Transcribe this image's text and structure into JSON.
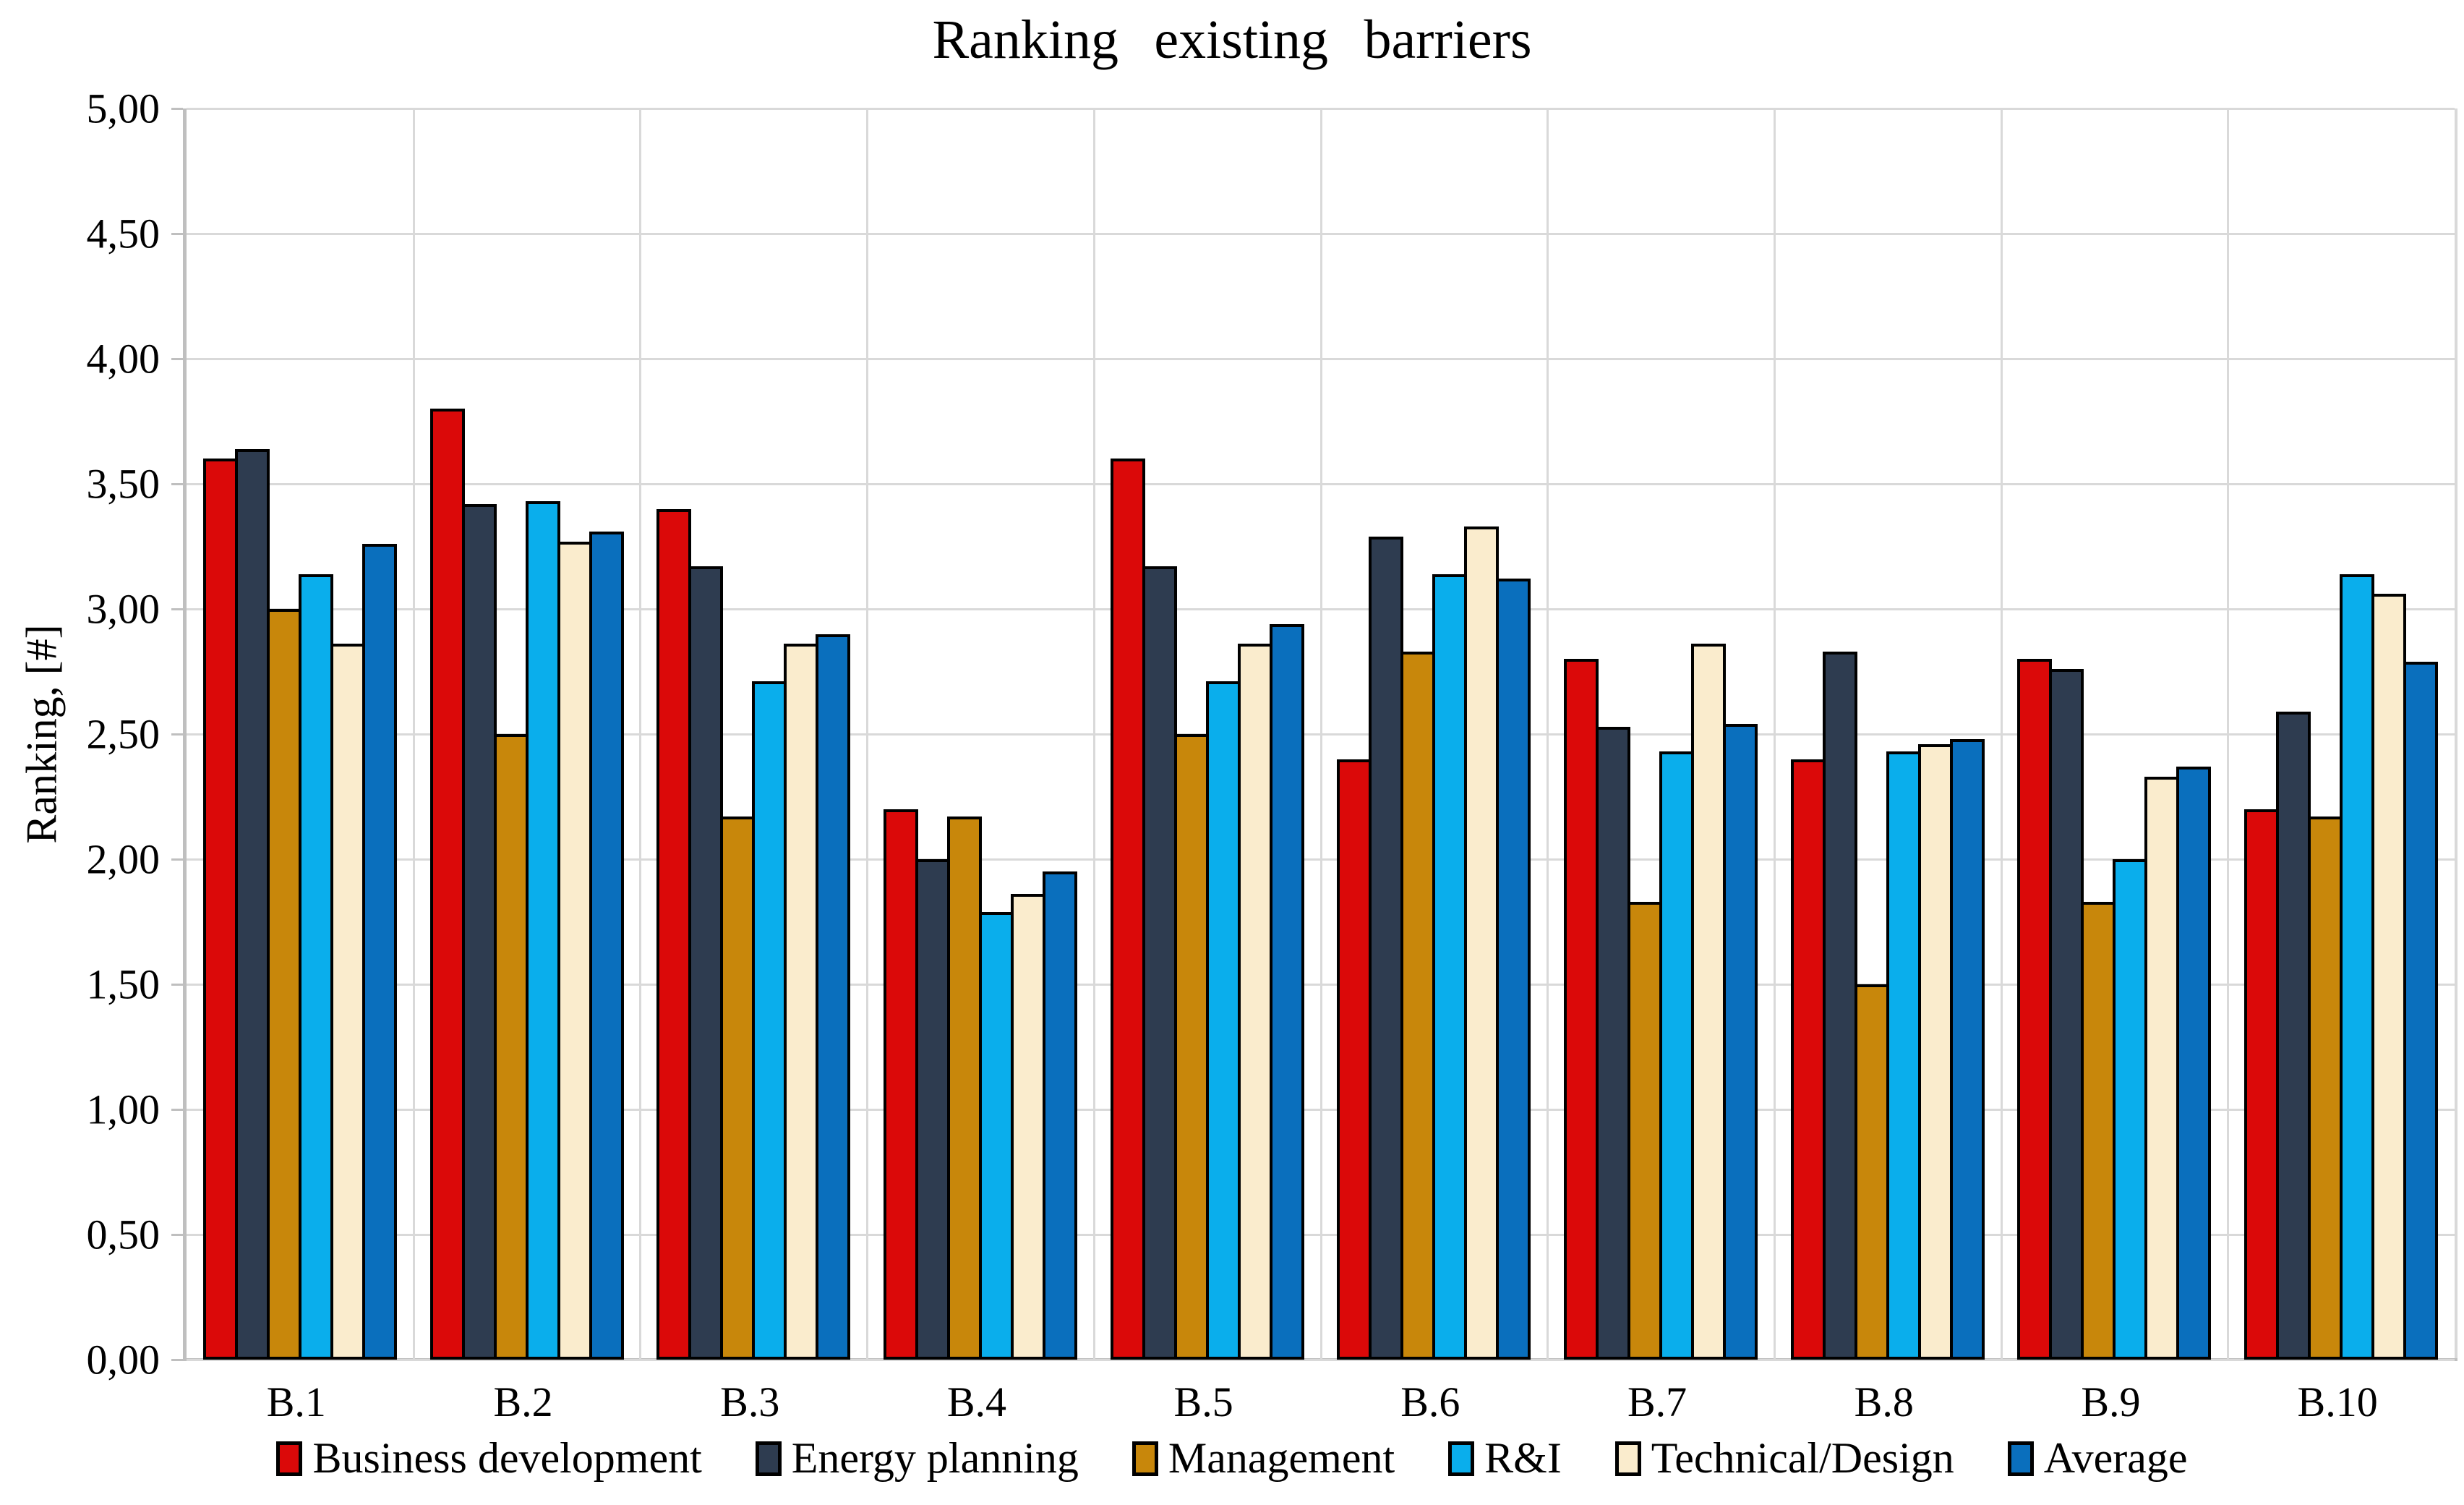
{
  "page": {
    "background": "#ffffff"
  },
  "chart_data": {
    "type": "bar",
    "title": "Ranking existing barriers",
    "ylabel": "Ranking, [#]",
    "xlabel": "",
    "ylim": [
      0,
      5
    ],
    "y_tick_step": 0.5,
    "y_tick_labels": [
      "0,00",
      "0,50",
      "1,00",
      "1,50",
      "2,00",
      "2,50",
      "3,00",
      "3,50",
      "4,00",
      "4,50",
      "5,00"
    ],
    "grid": true,
    "legend_position": "bottom",
    "bar_outline_color": "#000000",
    "gridline_color": "#d9d9d9",
    "axis_color": "#bfbfbf",
    "categories": [
      "B.1",
      "B.2",
      "B.3",
      "B.4",
      "B.5",
      "B.6",
      "B.7",
      "B.8",
      "B.9",
      "B.10"
    ],
    "series": [
      {
        "name": "Business development",
        "color": "#db0909",
        "values": [
          3.6,
          3.8,
          3.4,
          2.2,
          3.6,
          2.4,
          2.8,
          2.4,
          2.8,
          2.2
        ]
      },
      {
        "name": "Energy planning",
        "color": "#2e3c50",
        "values": [
          3.64,
          3.42,
          3.17,
          2.0,
          3.17,
          3.29,
          2.53,
          2.83,
          2.76,
          2.59
        ]
      },
      {
        "name": "Management",
        "color": "#c8870b",
        "values": [
          3.0,
          2.5,
          2.17,
          2.17,
          2.5,
          2.83,
          1.83,
          1.5,
          1.83,
          2.17
        ]
      },
      {
        "name": "R&I",
        "color": "#0aaeec",
        "values": [
          3.14,
          3.43,
          2.71,
          1.79,
          2.71,
          3.14,
          2.43,
          2.43,
          2.0,
          3.14
        ]
      },
      {
        "name": "Technical/Design",
        "color": "#faeccd",
        "values": [
          2.86,
          3.27,
          2.86,
          1.86,
          2.86,
          3.33,
          2.86,
          2.46,
          2.33,
          3.06
        ]
      },
      {
        "name": "Average",
        "color": "#0a6fbd",
        "values": [
          3.26,
          3.31,
          2.9,
          1.95,
          2.94,
          3.12,
          2.54,
          2.48,
          2.37,
          2.79
        ]
      }
    ]
  }
}
